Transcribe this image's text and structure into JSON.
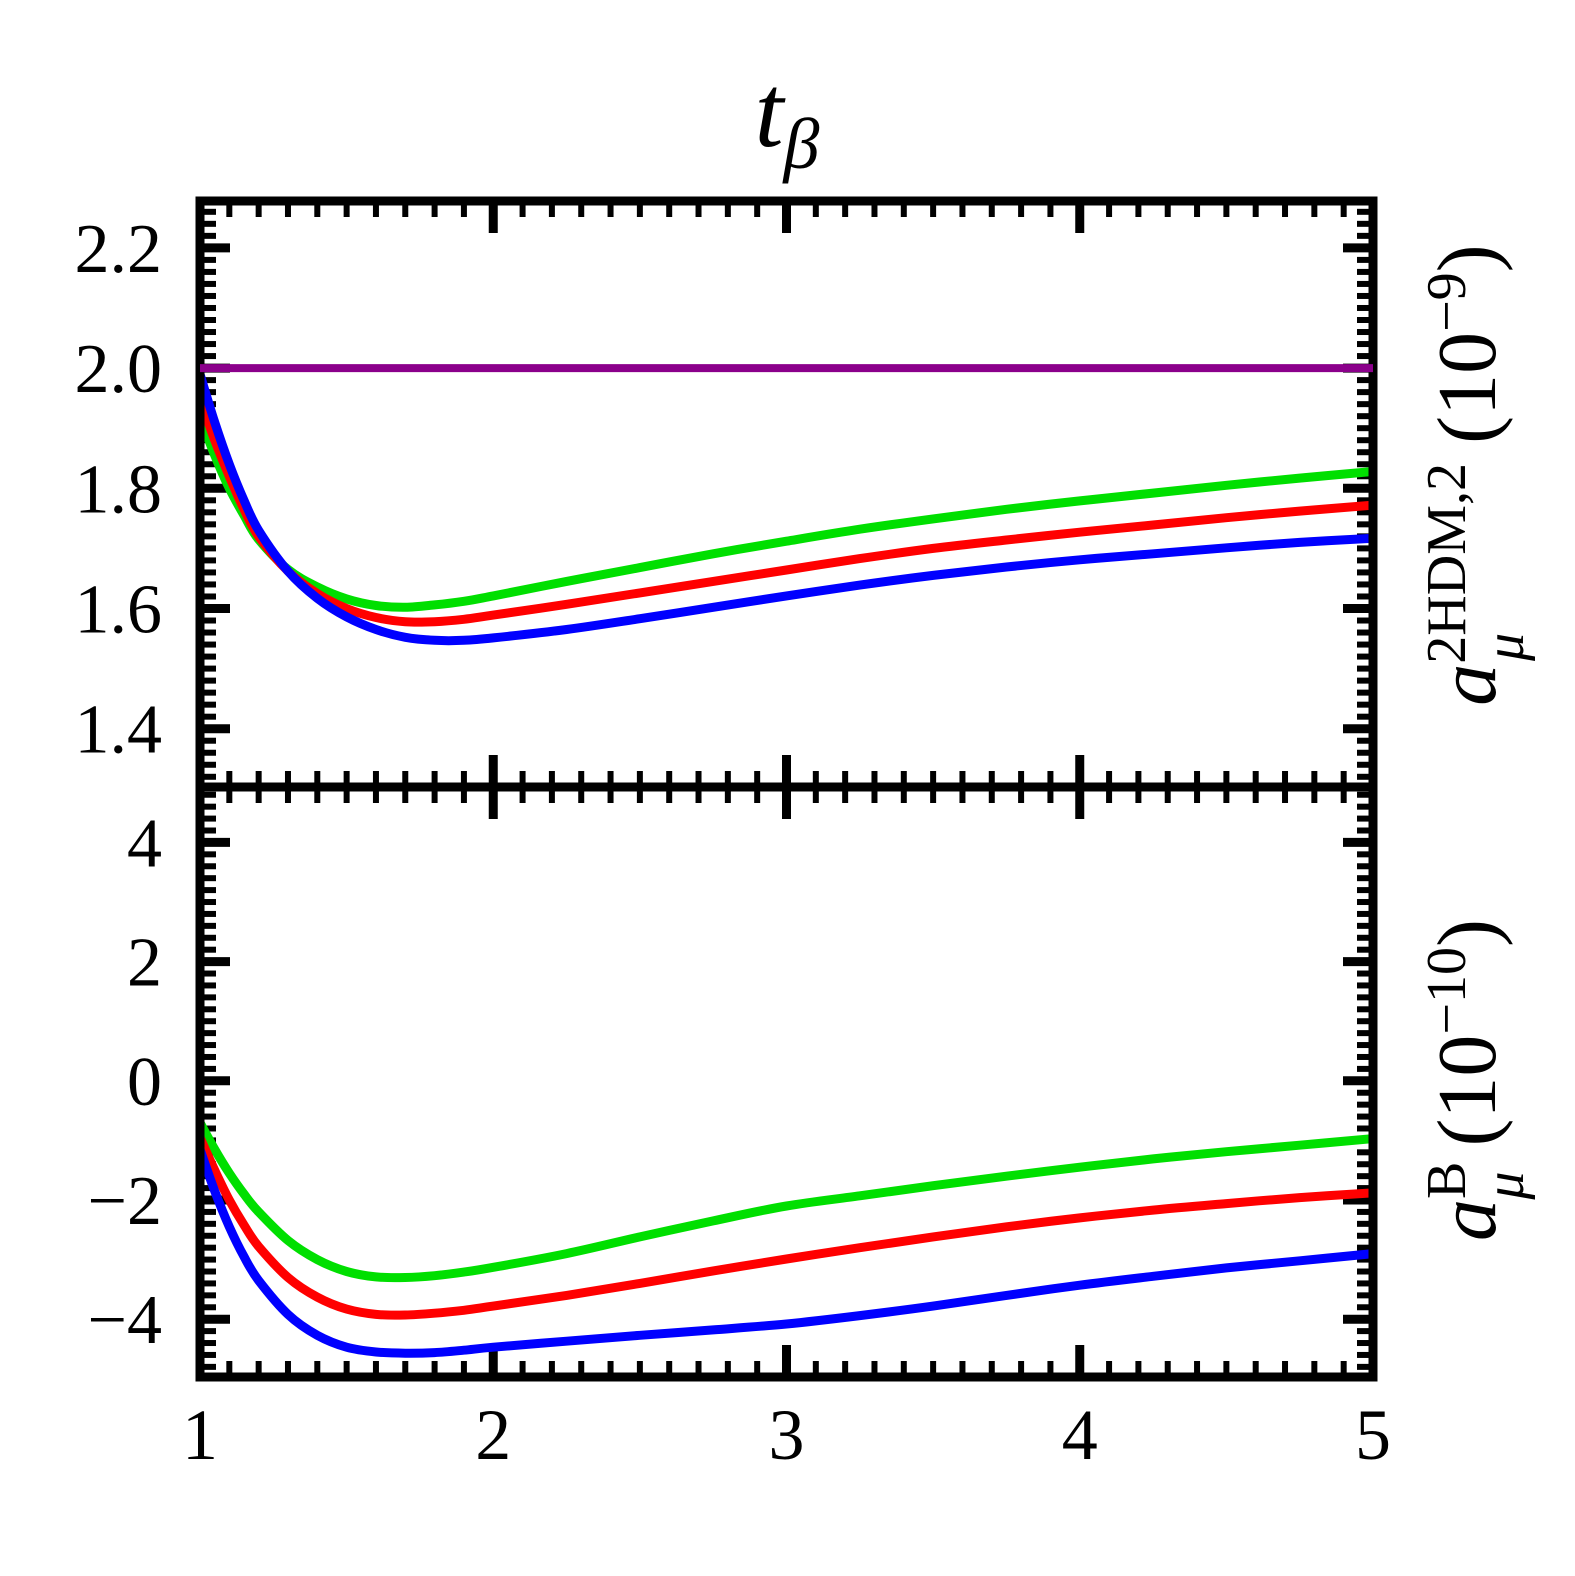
{
  "background": "#FFFFFF",
  "title": {
    "base": "t",
    "subscript": "β"
  },
  "x_axis": {
    "tick_labels": [
      "1",
      "2",
      "3",
      "4",
      "5"
    ],
    "tick_values": [
      1,
      2,
      3,
      4,
      5
    ],
    "range": [
      1,
      5
    ],
    "minor_step": 0.1
  },
  "panels": [
    {
      "position": "top",
      "y_tick_labels": [
        "2.2",
        "2.0",
        "1.8",
        "1.6",
        "1.4"
      ],
      "y_tick_values": [
        2.2,
        2.0,
        1.8,
        1.6,
        1.4
      ],
      "y_minor_step": 0.02,
      "ylabel": {
        "base": "a",
        "sup": "2HDM,2",
        "sub": "μ",
        "unit_open": " (10",
        "exp": "−9",
        "unit_close": ")"
      }
    },
    {
      "position": "bottom",
      "y_tick_labels": [
        "4",
        "2",
        "0",
        "−2",
        "−4"
      ],
      "y_tick_values": [
        4,
        2,
        0,
        -2,
        -4
      ],
      "y_minor_step": 0.2,
      "ylabel": {
        "base": "a",
        "sup": "B",
        "sub": "μ",
        "unit_open": " (10",
        "exp": "−10",
        "unit_close": ")"
      }
    }
  ],
  "chart_data": [
    {
      "type": "line",
      "panel": "top",
      "title": "t_beta dependence, upper panel",
      "xlabel": "t_β",
      "ylabel": "a_μ^{2HDM,2} (10^{−9})",
      "xlim": [
        1,
        5
      ],
      "ylim": [
        1.303,
        2.278
      ],
      "grid": false,
      "legend": "none",
      "reference_line": {
        "value": 2.0,
        "color": "#8B008B",
        "style": "solid"
      },
      "series": [
        {
          "name": "green",
          "color": "#00DF00",
          "points": [
            [
              1.0,
              1.92
            ],
            [
              1.05,
              1.855
            ],
            [
              1.1,
              1.8
            ],
            [
              1.15,
              1.755
            ],
            [
              1.2,
              1.715
            ],
            [
              1.3,
              1.665
            ],
            [
              1.4,
              1.636
            ],
            [
              1.5,
              1.616
            ],
            [
              1.6,
              1.605
            ],
            [
              1.7,
              1.602
            ],
            [
              1.8,
              1.606
            ],
            [
              1.9,
              1.612
            ],
            [
              2.0,
              1.621
            ],
            [
              2.25,
              1.645
            ],
            [
              2.5,
              1.668
            ],
            [
              2.75,
              1.691
            ],
            [
              3.0,
              1.712
            ],
            [
              3.25,
              1.732
            ],
            [
              3.5,
              1.749
            ],
            [
              3.75,
              1.765
            ],
            [
              4.0,
              1.779
            ],
            [
              4.25,
              1.792
            ],
            [
              4.5,
              1.805
            ],
            [
              4.75,
              1.817
            ],
            [
              5.0,
              1.828
            ]
          ]
        },
        {
          "name": "red",
          "color": "#FF0000",
          "points": [
            [
              1.0,
              1.95
            ],
            [
              1.05,
              1.88
            ],
            [
              1.1,
              1.82
            ],
            [
              1.15,
              1.765
            ],
            [
              1.2,
              1.72
            ],
            [
              1.3,
              1.662
            ],
            [
              1.4,
              1.625
            ],
            [
              1.5,
              1.6
            ],
            [
              1.6,
              1.585
            ],
            [
              1.7,
              1.578
            ],
            [
              1.8,
              1.578
            ],
            [
              1.9,
              1.582
            ],
            [
              2.0,
              1.589
            ],
            [
              2.25,
              1.607
            ],
            [
              2.5,
              1.626
            ],
            [
              2.75,
              1.645
            ],
            [
              3.0,
              1.664
            ],
            [
              3.25,
              1.683
            ],
            [
              3.5,
              1.7
            ],
            [
              3.75,
              1.714
            ],
            [
              4.0,
              1.727
            ],
            [
              4.25,
              1.739
            ],
            [
              4.5,
              1.751
            ],
            [
              4.75,
              1.762
            ],
            [
              5.0,
              1.772
            ]
          ]
        },
        {
          "name": "blue",
          "color": "#0000FF",
          "points": [
            [
              1.0,
              1.99
            ],
            [
              1.05,
              1.91
            ],
            [
              1.1,
              1.84
            ],
            [
              1.15,
              1.78
            ],
            [
              1.2,
              1.73
            ],
            [
              1.3,
              1.662
            ],
            [
              1.4,
              1.617
            ],
            [
              1.5,
              1.586
            ],
            [
              1.6,
              1.565
            ],
            [
              1.7,
              1.552
            ],
            [
              1.8,
              1.547
            ],
            [
              1.9,
              1.547
            ],
            [
              2.0,
              1.551
            ],
            [
              2.25,
              1.565
            ],
            [
              2.5,
              1.583
            ],
            [
              2.75,
              1.602
            ],
            [
              3.0,
              1.621
            ],
            [
              3.25,
              1.639
            ],
            [
              3.5,
              1.655
            ],
            [
              3.75,
              1.669
            ],
            [
              4.0,
              1.681
            ],
            [
              4.25,
              1.691
            ],
            [
              4.5,
              1.701
            ],
            [
              4.75,
              1.71
            ],
            [
              5.0,
              1.717
            ]
          ]
        }
      ]
    },
    {
      "type": "line",
      "panel": "bottom",
      "title": "t_beta dependence, lower panel",
      "xlabel": "t_β",
      "ylabel": "a_μ^B (10^{−10})",
      "xlim": [
        1,
        5
      ],
      "ylim": [
        -4.97,
        4.93
      ],
      "grid": false,
      "legend": "none",
      "series": [
        {
          "name": "green",
          "color": "#00DF00",
          "points": [
            [
              1.0,
              -0.7
            ],
            [
              1.05,
              -1.15
            ],
            [
              1.1,
              -1.55
            ],
            [
              1.15,
              -1.9
            ],
            [
              1.2,
              -2.2
            ],
            [
              1.3,
              -2.68
            ],
            [
              1.4,
              -3.0
            ],
            [
              1.5,
              -3.2
            ],
            [
              1.6,
              -3.29
            ],
            [
              1.7,
              -3.3
            ],
            [
              1.8,
              -3.27
            ],
            [
              1.9,
              -3.21
            ],
            [
              2.0,
              -3.13
            ],
            [
              2.25,
              -2.9
            ],
            [
              2.5,
              -2.62
            ],
            [
              2.75,
              -2.35
            ],
            [
              3.0,
              -2.1
            ],
            [
              3.25,
              -1.93
            ],
            [
              3.5,
              -1.76
            ],
            [
              3.75,
              -1.6
            ],
            [
              4.0,
              -1.45
            ],
            [
              4.25,
              -1.31
            ],
            [
              4.5,
              -1.19
            ],
            [
              4.75,
              -1.08
            ],
            [
              5.0,
              -0.97
            ]
          ]
        },
        {
          "name": "red",
          "color": "#FF0000",
          "points": [
            [
              1.0,
              -0.95
            ],
            [
              1.05,
              -1.5
            ],
            [
              1.1,
              -2.0
            ],
            [
              1.15,
              -2.42
            ],
            [
              1.2,
              -2.78
            ],
            [
              1.3,
              -3.3
            ],
            [
              1.4,
              -3.63
            ],
            [
              1.5,
              -3.83
            ],
            [
              1.6,
              -3.92
            ],
            [
              1.7,
              -3.93
            ],
            [
              1.8,
              -3.9
            ],
            [
              1.9,
              -3.85
            ],
            [
              2.0,
              -3.78
            ],
            [
              2.25,
              -3.6
            ],
            [
              2.5,
              -3.4
            ],
            [
              2.75,
              -3.19
            ],
            [
              3.0,
              -2.99
            ],
            [
              3.25,
              -2.8
            ],
            [
              3.5,
              -2.62
            ],
            [
              3.75,
              -2.45
            ],
            [
              4.0,
              -2.3
            ],
            [
              4.25,
              -2.17
            ],
            [
              4.5,
              -2.06
            ],
            [
              4.75,
              -1.96
            ],
            [
              5.0,
              -1.88
            ]
          ]
        },
        {
          "name": "blue",
          "color": "#0000FF",
          "points": [
            [
              1.0,
              -1.15
            ],
            [
              1.05,
              -1.85
            ],
            [
              1.1,
              -2.45
            ],
            [
              1.15,
              -2.95
            ],
            [
              1.2,
              -3.35
            ],
            [
              1.3,
              -3.92
            ],
            [
              1.4,
              -4.27
            ],
            [
              1.5,
              -4.47
            ],
            [
              1.6,
              -4.55
            ],
            [
              1.7,
              -4.57
            ],
            [
              1.8,
              -4.56
            ],
            [
              1.9,
              -4.52
            ],
            [
              2.0,
              -4.47
            ],
            [
              2.25,
              -4.37
            ],
            [
              2.5,
              -4.27
            ],
            [
              2.75,
              -4.18
            ],
            [
              3.0,
              -4.08
            ],
            [
              3.25,
              -3.94
            ],
            [
              3.5,
              -3.78
            ],
            [
              3.75,
              -3.6
            ],
            [
              4.0,
              -3.43
            ],
            [
              4.25,
              -3.28
            ],
            [
              4.5,
              -3.14
            ],
            [
              4.75,
              -3.02
            ],
            [
              5.0,
              -2.9
            ]
          ]
        }
      ]
    }
  ]
}
